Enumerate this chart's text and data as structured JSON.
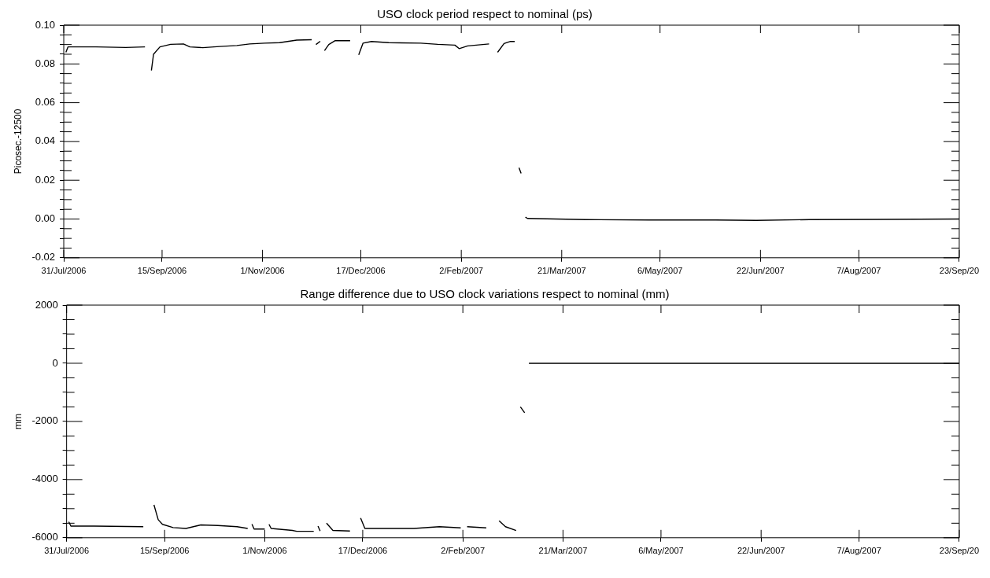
{
  "chart_data": [
    {
      "type": "line",
      "title": "USO clock period respect to nominal (ps)",
      "ylabel": "Picosec.-12500",
      "xlim": [
        "2006-07-31",
        "2007-09-23"
      ],
      "xticks": [
        {
          "value": "2006-07-31",
          "label": "31/Jul/2006"
        },
        {
          "value": "2006-09-15",
          "label": "15/Sep/2006"
        },
        {
          "value": "2006-11-01",
          "label": "1/Nov/2006"
        },
        {
          "value": "2006-12-17",
          "label": "17/Dec/2006"
        },
        {
          "value": "2007-02-02",
          "label": "2/Feb/2007"
        },
        {
          "value": "2007-03-21",
          "label": "21/Mar/2007"
        },
        {
          "value": "2007-05-06",
          "label": "6/May/2007"
        },
        {
          "value": "2007-06-22",
          "label": "22/Jun/2007"
        },
        {
          "value": "2007-08-07",
          "label": "7/Aug/2007"
        },
        {
          "value": "2007-09-23",
          "label": "23/Sep/20"
        }
      ],
      "ylim": [
        -0.02,
        0.1
      ],
      "yticks": [
        {
          "value": -0.02,
          "label": "-0.02"
        },
        {
          "value": -0.015,
          "label": null
        },
        {
          "value": -0.01,
          "label": null
        },
        {
          "value": -0.005,
          "label": null
        },
        {
          "value": 0,
          "label": "0.00"
        },
        {
          "value": 0.005,
          "label": null
        },
        {
          "value": 0.01,
          "label": null
        },
        {
          "value": 0.015,
          "label": null
        },
        {
          "value": 0.02,
          "label": "0.02"
        },
        {
          "value": 0.025,
          "label": null
        },
        {
          "value": 0.03,
          "label": null
        },
        {
          "value": 0.035,
          "label": null
        },
        {
          "value": 0.04,
          "label": "0.04"
        },
        {
          "value": 0.045,
          "label": null
        },
        {
          "value": 0.05,
          "label": null
        },
        {
          "value": 0.055,
          "label": null
        },
        {
          "value": 0.06,
          "label": "0.06"
        },
        {
          "value": 0.065,
          "label": null
        },
        {
          "value": 0.07,
          "label": null
        },
        {
          "value": 0.075,
          "label": null
        },
        {
          "value": 0.08,
          "label": "0.08"
        },
        {
          "value": 0.085,
          "label": null
        },
        {
          "value": 0.09,
          "label": null
        },
        {
          "value": 0.095,
          "label": null
        },
        {
          "value": 0.1,
          "label": "0.10"
        }
      ],
      "grid": false,
      "legend": false,
      "line_style": "solid",
      "marker": "none",
      "series": [
        {
          "color": "#000000",
          "x": [
            "2006-08-01",
            "2006-08-02",
            "2006-08-15",
            "2006-08-29",
            "2006-09-07",
            "2006-09-09",
            "2006-09-10",
            "2006-09-11",
            "2006-09-14",
            "2006-09-19",
            "2006-09-25",
            "2006-09-28",
            "2006-10-04",
            "2006-10-12",
            "2006-10-20",
            "2006-10-26",
            "2006-11-02",
            "2006-11-09",
            "2006-11-17",
            "2006-11-24",
            "2006-11-25",
            "2006-11-26",
            "2006-11-28",
            "2006-11-29",
            "2006-11-30",
            "2006-12-02",
            "2006-12-05",
            "2006-12-12",
            "2006-12-14",
            "2006-12-16",
            "2006-12-18",
            "2006-12-22",
            "2006-12-30",
            "2007-01-14",
            "2007-01-22",
            "2007-01-30",
            "2007-02-01",
            "2007-02-05",
            "2007-02-15",
            "2007-02-17",
            "2007-02-19",
            "2007-02-22",
            "2007-02-25",
            "2007-02-27",
            "2007-02-28",
            "2007-03-01",
            "2007-03-02",
            "2007-03-03",
            "2007-03-04",
            "2007-03-05",
            "2007-04-01",
            "2007-05-01",
            "2007-06-01",
            "2007-06-20",
            "2007-07-15",
            "2007-08-15",
            "2007-09-23"
          ],
          "values": [
            0.086,
            0.0888,
            0.0888,
            0.0885,
            0.0888,
            null,
            0.0766,
            0.085,
            0.0888,
            0.0901,
            0.0903,
            0.0888,
            0.0884,
            0.089,
            0.0895,
            0.0903,
            0.0907,
            0.091,
            0.0923,
            0.0925,
            null,
            0.09,
            0.0917,
            null,
            0.0869,
            0.09,
            0.092,
            0.092,
            null,
            0.0847,
            0.0907,
            0.0916,
            0.091,
            0.0907,
            0.0901,
            0.0897,
            0.0879,
            0.0893,
            0.0903,
            null,
            0.086,
            0.0905,
            0.0916,
            0.0916,
            null,
            0.0265,
            0.0235,
            null,
            0.001,
            0.0003,
            -0.0003,
            -0.0005,
            -0.0005,
            -0.0007,
            -0.0003,
            -0.0002,
            0
          ]
        }
      ]
    },
    {
      "type": "line",
      "title": "Range difference due to USO clock variations respect to nominal (mm)",
      "ylabel": "mm",
      "xlim": [
        "2006-07-31",
        "2007-09-23"
      ],
      "xticks": [
        {
          "value": "2006-07-31",
          "label": "31/Jul/2006"
        },
        {
          "value": "2006-09-15",
          "label": "15/Sep/2006"
        },
        {
          "value": "2006-11-01",
          "label": "1/Nov/2006"
        },
        {
          "value": "2006-12-17",
          "label": "17/Dec/2006"
        },
        {
          "value": "2007-02-02",
          "label": "2/Feb/2007"
        },
        {
          "value": "2007-03-21",
          "label": "21/Mar/2007"
        },
        {
          "value": "2007-05-06",
          "label": "6/May/2007"
        },
        {
          "value": "2007-06-22",
          "label": "22/Jun/2007"
        },
        {
          "value": "2007-08-07",
          "label": "7/Aug/2007"
        },
        {
          "value": "2007-09-23",
          "label": "23/Sep/20"
        }
      ],
      "ylim": [
        -6000,
        2000
      ],
      "yticks": [
        -6000,
        {
          "value": -5500,
          "label": null
        },
        {
          "value": -5000,
          "label": null
        },
        {
          "value": -4500,
          "label": null
        },
        -4000,
        {
          "value": -3500,
          "label": null
        },
        {
          "value": -3000,
          "label": null
        },
        {
          "value": -2500,
          "label": null
        },
        -2000,
        {
          "value": -1500,
          "label": null
        },
        {
          "value": -1000,
          "label": null
        },
        {
          "value": -500,
          "label": null
        },
        0,
        {
          "value": 500,
          "label": null
        },
        {
          "value": 1000,
          "label": null
        },
        {
          "value": 1500,
          "label": null
        },
        2000
      ],
      "grid": false,
      "legend": false,
      "line_style": "solid",
      "marker": "none",
      "series": [
        {
          "color": "#000000",
          "x": [
            "2006-08-01",
            "2006-08-02",
            "2006-08-13",
            "2006-09-05",
            "2006-09-08",
            "2006-09-10",
            "2006-09-12",
            "2006-09-14",
            "2006-09-19",
            "2006-09-25",
            "2006-10-02",
            "2006-10-10",
            "2006-10-19",
            "2006-10-24",
            "2006-10-25",
            "2006-10-26",
            "2006-10-27",
            "2006-11-01",
            "2006-11-02",
            "2006-11-03",
            "2006-11-04",
            "2006-11-14",
            "2006-11-16",
            "2006-11-24",
            "2006-11-25",
            "2006-11-26",
            "2006-11-27",
            "2006-11-28",
            "2006-11-30",
            "2006-12-03",
            "2006-12-11",
            "2006-12-14",
            "2006-12-16",
            "2006-12-18",
            "2006-12-24",
            "2007-01-10",
            "2007-01-22",
            "2007-02-01",
            "2007-02-02",
            "2007-02-04",
            "2007-02-13",
            "2007-02-16",
            "2007-02-19",
            "2007-02-22",
            "2007-02-27",
            "2007-02-28",
            "2007-03-01",
            "2007-03-03",
            "2007-03-04",
            "2007-03-05",
            "2007-05-15",
            "2007-06-01",
            "2007-07-01",
            "2007-09-23"
          ],
          "values": [
            -5450,
            -5600,
            -5600,
            -5620,
            null,
            -4870,
            -5380,
            -5540,
            -5650,
            -5680,
            -5560,
            -5580,
            -5620,
            -5680,
            null,
            -5530,
            -5700,
            -5700,
            null,
            -5540,
            -5680,
            -5750,
            -5780,
            -5780,
            null,
            -5600,
            -5770,
            null,
            -5500,
            -5750,
            -5770,
            null,
            -5320,
            -5680,
            -5680,
            -5680,
            -5620,
            -5660,
            null,
            -5620,
            -5660,
            null,
            -5420,
            -5620,
            -5750,
            null,
            -1500,
            -1700,
            null,
            0,
            0,
            0,
            0,
            0
          ]
        }
      ]
    }
  ]
}
